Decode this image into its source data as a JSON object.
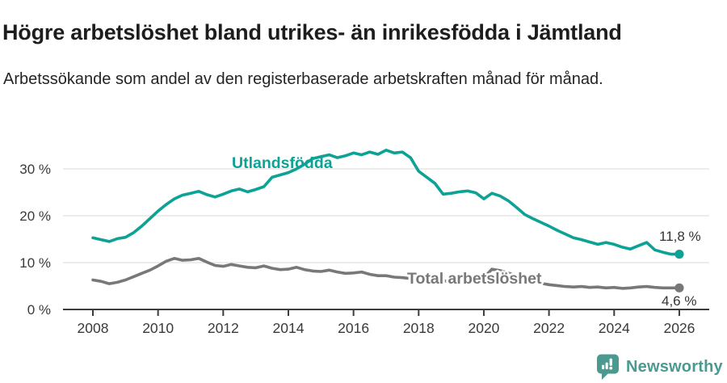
{
  "header": {
    "title": "Högre arbetslöshet bland utrikes- än inrikesfödda i Jämtland",
    "subtitle": "Arbetssökande som andel av den registerbaserade arbetskraften månad för månad."
  },
  "chart_data": {
    "type": "line",
    "title": "Högre arbetslöshet bland utrikes- än inrikesfödda i Jämtland",
    "unit": "%",
    "grid": true,
    "legend_position": "inline-labels",
    "x_axis": {
      "ticks": [
        2008,
        2010,
        2012,
        2014,
        2016,
        2018,
        2020,
        2022,
        2024,
        2026
      ],
      "range": [
        2007.1,
        2026.9
      ]
    },
    "y_axis": {
      "ticks": [
        0,
        10,
        20,
        30
      ],
      "tick_labels": [
        "0 %",
        "10 %",
        "20 %",
        "30 %"
      ],
      "range": [
        0,
        36
      ]
    },
    "x": [
      2008,
      2008.25,
      2008.5,
      2008.75,
      2009,
      2009.25,
      2009.5,
      2009.75,
      2010,
      2010.25,
      2010.5,
      2010.75,
      2011,
      2011.25,
      2011.5,
      2011.75,
      2012,
      2012.25,
      2012.5,
      2012.75,
      2013,
      2013.25,
      2013.5,
      2013.75,
      2014,
      2014.25,
      2014.5,
      2014.75,
      2015,
      2015.25,
      2015.5,
      2015.75,
      2016,
      2016.25,
      2016.5,
      2016.75,
      2017,
      2017.25,
      2017.5,
      2017.75,
      2018,
      2018.25,
      2018.5,
      2018.75,
      2019,
      2019.25,
      2019.5,
      2019.75,
      2020,
      2020.25,
      2020.5,
      2020.75,
      2021,
      2021.25,
      2021.5,
      2021.75,
      2022,
      2022.25,
      2022.5,
      2022.75,
      2023,
      2023.25,
      2023.5,
      2023.75,
      2024,
      2024.25,
      2024.5,
      2024.75,
      2025,
      2025.25,
      2025.5,
      2025.75,
      2026
    ],
    "series": [
      {
        "name": "Utlandsfödda",
        "color": "#0ca295",
        "end_label": "11,8 %",
        "end_value": 11.8,
        "values": [
          15.3,
          14.9,
          14.5,
          15.1,
          15.4,
          16.4,
          17.8,
          19.4,
          21.0,
          22.4,
          23.6,
          24.4,
          24.8,
          25.2,
          24.5,
          24.0,
          24.6,
          25.3,
          25.7,
          25.1,
          25.6,
          26.2,
          28.2,
          28.7,
          29.2,
          30.0,
          31.0,
          32.2,
          32.6,
          33.0,
          32.4,
          32.8,
          33.4,
          33.0,
          33.6,
          33.1,
          34.0,
          33.4,
          33.6,
          32.4,
          29.5,
          28.2,
          26.9,
          24.6,
          24.8,
          25.1,
          25.3,
          24.9,
          23.6,
          24.8,
          24.2,
          23.2,
          21.8,
          20.3,
          19.4,
          18.6,
          17.8,
          16.9,
          16.1,
          15.3,
          14.9,
          14.4,
          13.9,
          14.3,
          13.9,
          13.3,
          12.9,
          13.6,
          14.3,
          12.7,
          12.2,
          11.8,
          11.8
        ]
      },
      {
        "name": "Total arbetslöshet",
        "color": "#78787a",
        "end_label": "4,6 %",
        "end_value": 4.6,
        "values": [
          6.3,
          6.0,
          5.5,
          5.8,
          6.3,
          7.0,
          7.7,
          8.4,
          9.3,
          10.3,
          10.9,
          10.5,
          10.6,
          10.9,
          10.1,
          9.4,
          9.2,
          9.6,
          9.3,
          9.0,
          8.9,
          9.3,
          8.8,
          8.5,
          8.6,
          9.0,
          8.5,
          8.2,
          8.1,
          8.4,
          8.0,
          7.7,
          7.8,
          8.0,
          7.5,
          7.2,
          7.2,
          6.9,
          6.8,
          6.6,
          6.5,
          6.4,
          6.2,
          6.1,
          6.0,
          6.1,
          6.2,
          6.3,
          6.8,
          8.6,
          8.3,
          7.8,
          7.2,
          6.6,
          6.0,
          5.6,
          5.3,
          5.1,
          4.9,
          4.8,
          4.9,
          4.7,
          4.8,
          4.6,
          4.7,
          4.5,
          4.6,
          4.8,
          4.9,
          4.7,
          4.6,
          4.6,
          4.6
        ]
      }
    ]
  },
  "footer": {
    "brand": "Newsworthy"
  },
  "colors": {
    "accent_teal": "#0ca295",
    "line_gray": "#78787a",
    "grid": "#dadada",
    "axis": "#3c3c3c",
    "tick_text": "#3a3a3a",
    "brand_teal": "#4a9a90"
  }
}
